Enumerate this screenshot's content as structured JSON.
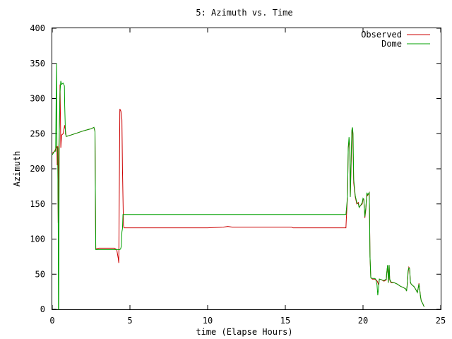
{
  "chart_data": {
    "type": "line",
    "title": "5: Azimuth vs. Time",
    "xlabel": "time (Elapse Hours)",
    "ylabel": "Azimuth",
    "xlim": [
      0,
      25
    ],
    "ylim": [
      0,
      400
    ],
    "xticks": [
      0,
      5,
      10,
      15,
      20,
      25
    ],
    "yticks": [
      0,
      50,
      100,
      150,
      200,
      250,
      300,
      350,
      400
    ],
    "grid": false,
    "legend_position": "top-right",
    "series": [
      {
        "name": "Observed",
        "color": "#cc0000",
        "points": [
          [
            0.0,
            222
          ],
          [
            0.15,
            225
          ],
          [
            0.25,
            230
          ],
          [
            0.3,
            233
          ],
          [
            0.32,
            205
          ],
          [
            0.35,
            232
          ],
          [
            0.38,
            123
          ],
          [
            0.42,
            230
          ],
          [
            0.45,
            245
          ],
          [
            0.5,
            320
          ],
          [
            0.55,
            230
          ],
          [
            0.6,
            248
          ],
          [
            0.7,
            250
          ],
          [
            0.8,
            262
          ],
          [
            0.9,
            246
          ],
          [
            1.2,
            248
          ],
          [
            1.6,
            251
          ],
          [
            2.0,
            254
          ],
          [
            2.5,
            257
          ],
          [
            2.68,
            259
          ],
          [
            2.75,
            253
          ],
          [
            2.78,
            140
          ],
          [
            2.8,
            86
          ],
          [
            3.0,
            87
          ],
          [
            3.5,
            87
          ],
          [
            4.0,
            87
          ],
          [
            4.15,
            85
          ],
          [
            4.25,
            72
          ],
          [
            4.28,
            66
          ],
          [
            4.32,
            180
          ],
          [
            4.35,
            285
          ],
          [
            4.42,
            282
          ],
          [
            4.48,
            270
          ],
          [
            4.52,
            200
          ],
          [
            4.58,
            120
          ],
          [
            4.62,
            116
          ],
          [
            6.0,
            116
          ],
          [
            8.0,
            116
          ],
          [
            10.0,
            116
          ],
          [
            11.0,
            117
          ],
          [
            11.3,
            118
          ],
          [
            11.6,
            117
          ],
          [
            13.0,
            117
          ],
          [
            15.0,
            117
          ],
          [
            15.4,
            117
          ],
          [
            15.5,
            116
          ],
          [
            17.0,
            116
          ],
          [
            18.0,
            116
          ],
          [
            18.9,
            116
          ],
          [
            18.92,
            125
          ],
          [
            19.0,
            160
          ],
          [
            19.05,
            230
          ],
          [
            19.1,
            240
          ],
          [
            19.15,
            228
          ],
          [
            19.18,
            160
          ],
          [
            19.22,
            190
          ],
          [
            19.28,
            250
          ],
          [
            19.3,
            258
          ],
          [
            19.34,
            250
          ],
          [
            19.4,
            180
          ],
          [
            19.5,
            160
          ],
          [
            19.6,
            150
          ],
          [
            19.7,
            152
          ],
          [
            19.75,
            145
          ],
          [
            19.85,
            148
          ],
          [
            19.95,
            150
          ],
          [
            20.0,
            157
          ],
          [
            20.05,
            157
          ],
          [
            20.1,
            140
          ],
          [
            20.12,
            130
          ],
          [
            20.18,
            142
          ],
          [
            20.25,
            165
          ],
          [
            20.3,
            162
          ],
          [
            20.4,
            166
          ],
          [
            20.42,
            140
          ],
          [
            20.45,
            75
          ],
          [
            20.5,
            45
          ],
          [
            20.6,
            43
          ],
          [
            20.75,
            43
          ],
          [
            20.82,
            42
          ],
          [
            20.92,
            40
          ],
          [
            21.0,
            35
          ],
          [
            21.05,
            43
          ],
          [
            21.2,
            42
          ],
          [
            21.35,
            40
          ],
          [
            21.5,
            42
          ],
          [
            21.52,
            50
          ],
          [
            21.58,
            62
          ],
          [
            21.6,
            55
          ],
          [
            21.63,
            38
          ],
          [
            21.68,
            63
          ],
          [
            21.72,
            42
          ],
          [
            21.8,
            38
          ],
          [
            22.0,
            38
          ],
          [
            22.2,
            36
          ],
          [
            22.4,
            33
          ],
          [
            22.6,
            31
          ],
          [
            22.75,
            29
          ],
          [
            22.8,
            26
          ],
          [
            22.85,
            35
          ],
          [
            22.9,
            52
          ],
          [
            22.95,
            60
          ],
          [
            23.0,
            58
          ],
          [
            23.05,
            38
          ],
          [
            23.1,
            36
          ],
          [
            23.2,
            34
          ],
          [
            23.3,
            32
          ],
          [
            23.4,
            28
          ],
          [
            23.5,
            24
          ],
          [
            23.55,
            30
          ],
          [
            23.6,
            37
          ],
          [
            23.65,
            28
          ],
          [
            23.7,
            18
          ],
          [
            23.75,
            12
          ],
          [
            23.8,
            10
          ],
          [
            23.85,
            8
          ],
          [
            23.9,
            5
          ],
          [
            23.95,
            4
          ]
        ]
      },
      {
        "name": "Dome",
        "color": "#00a000",
        "points": [
          [
            0.0,
            220
          ],
          [
            0.15,
            225
          ],
          [
            0.22,
            225
          ],
          [
            0.25,
            300
          ],
          [
            0.28,
            350
          ],
          [
            0.3,
            230
          ],
          [
            0.35,
            230
          ],
          [
            0.38,
            125
          ],
          [
            0.4,
            0
          ],
          [
            0.42,
            0
          ],
          [
            0.45,
            250
          ],
          [
            0.5,
            310
          ],
          [
            0.55,
            325
          ],
          [
            0.6,
            320
          ],
          [
            0.7,
            322
          ],
          [
            0.78,
            318
          ],
          [
            0.8,
            290
          ],
          [
            0.85,
            250
          ],
          [
            0.9,
            246
          ],
          [
            1.2,
            248
          ],
          [
            1.6,
            251
          ],
          [
            2.0,
            254
          ],
          [
            2.5,
            257
          ],
          [
            2.68,
            259
          ],
          [
            2.75,
            253
          ],
          [
            2.78,
            140
          ],
          [
            2.8,
            85
          ],
          [
            3.0,
            85
          ],
          [
            3.5,
            85
          ],
          [
            4.0,
            85
          ],
          [
            4.3,
            85
          ],
          [
            4.35,
            85
          ],
          [
            4.4,
            86
          ],
          [
            4.45,
            90
          ],
          [
            4.48,
            110
          ],
          [
            4.52,
            115
          ],
          [
            4.55,
            135
          ],
          [
            6.0,
            135
          ],
          [
            8.0,
            135
          ],
          [
            10.0,
            135
          ],
          [
            12.0,
            135
          ],
          [
            14.0,
            135
          ],
          [
            16.0,
            135
          ],
          [
            18.0,
            135
          ],
          [
            18.9,
            135
          ],
          [
            19.0,
            160
          ],
          [
            19.05,
            230
          ],
          [
            19.1,
            245
          ],
          [
            19.15,
            230
          ],
          [
            19.18,
            160
          ],
          [
            19.22,
            200
          ],
          [
            19.28,
            255
          ],
          [
            19.32,
            259
          ],
          [
            19.36,
            250
          ],
          [
            19.4,
            185
          ],
          [
            19.5,
            162
          ],
          [
            19.6,
            152
          ],
          [
            19.7,
            150
          ],
          [
            19.75,
            145
          ],
          [
            19.85,
            148
          ],
          [
            19.95,
            152
          ],
          [
            20.0,
            158
          ],
          [
            20.05,
            156
          ],
          [
            20.1,
            140
          ],
          [
            20.12,
            132
          ],
          [
            20.18,
            145
          ],
          [
            20.25,
            166
          ],
          [
            20.3,
            163
          ],
          [
            20.4,
            166
          ],
          [
            20.42,
            140
          ],
          [
            20.45,
            75
          ],
          [
            20.5,
            45
          ],
          [
            20.6,
            44
          ],
          [
            20.75,
            44
          ],
          [
            20.82,
            43
          ],
          [
            20.9,
            35
          ],
          [
            20.95,
            20
          ],
          [
            21.0,
            30
          ],
          [
            21.05,
            43
          ],
          [
            21.2,
            42
          ],
          [
            21.35,
            41
          ],
          [
            21.5,
            43
          ],
          [
            21.52,
            50
          ],
          [
            21.58,
            63
          ],
          [
            21.6,
            55
          ],
          [
            21.63,
            38
          ],
          [
            21.68,
            63
          ],
          [
            21.72,
            43
          ],
          [
            21.8,
            39
          ],
          [
            22.0,
            38
          ],
          [
            22.2,
            36
          ],
          [
            22.4,
            33
          ],
          [
            22.6,
            31
          ],
          [
            22.75,
            29
          ],
          [
            22.8,
            26
          ],
          [
            22.85,
            36
          ],
          [
            22.9,
            55
          ],
          [
            22.95,
            59
          ],
          [
            23.0,
            58
          ],
          [
            23.05,
            39
          ],
          [
            23.1,
            36
          ],
          [
            23.2,
            34
          ],
          [
            23.3,
            32
          ],
          [
            23.4,
            28
          ],
          [
            23.5,
            24
          ],
          [
            23.55,
            30
          ],
          [
            23.6,
            36
          ],
          [
            23.65,
            28
          ],
          [
            23.7,
            18
          ],
          [
            23.75,
            12
          ],
          [
            23.8,
            10
          ],
          [
            23.85,
            8
          ],
          [
            23.9,
            5
          ],
          [
            23.95,
            4
          ]
        ]
      }
    ]
  }
}
